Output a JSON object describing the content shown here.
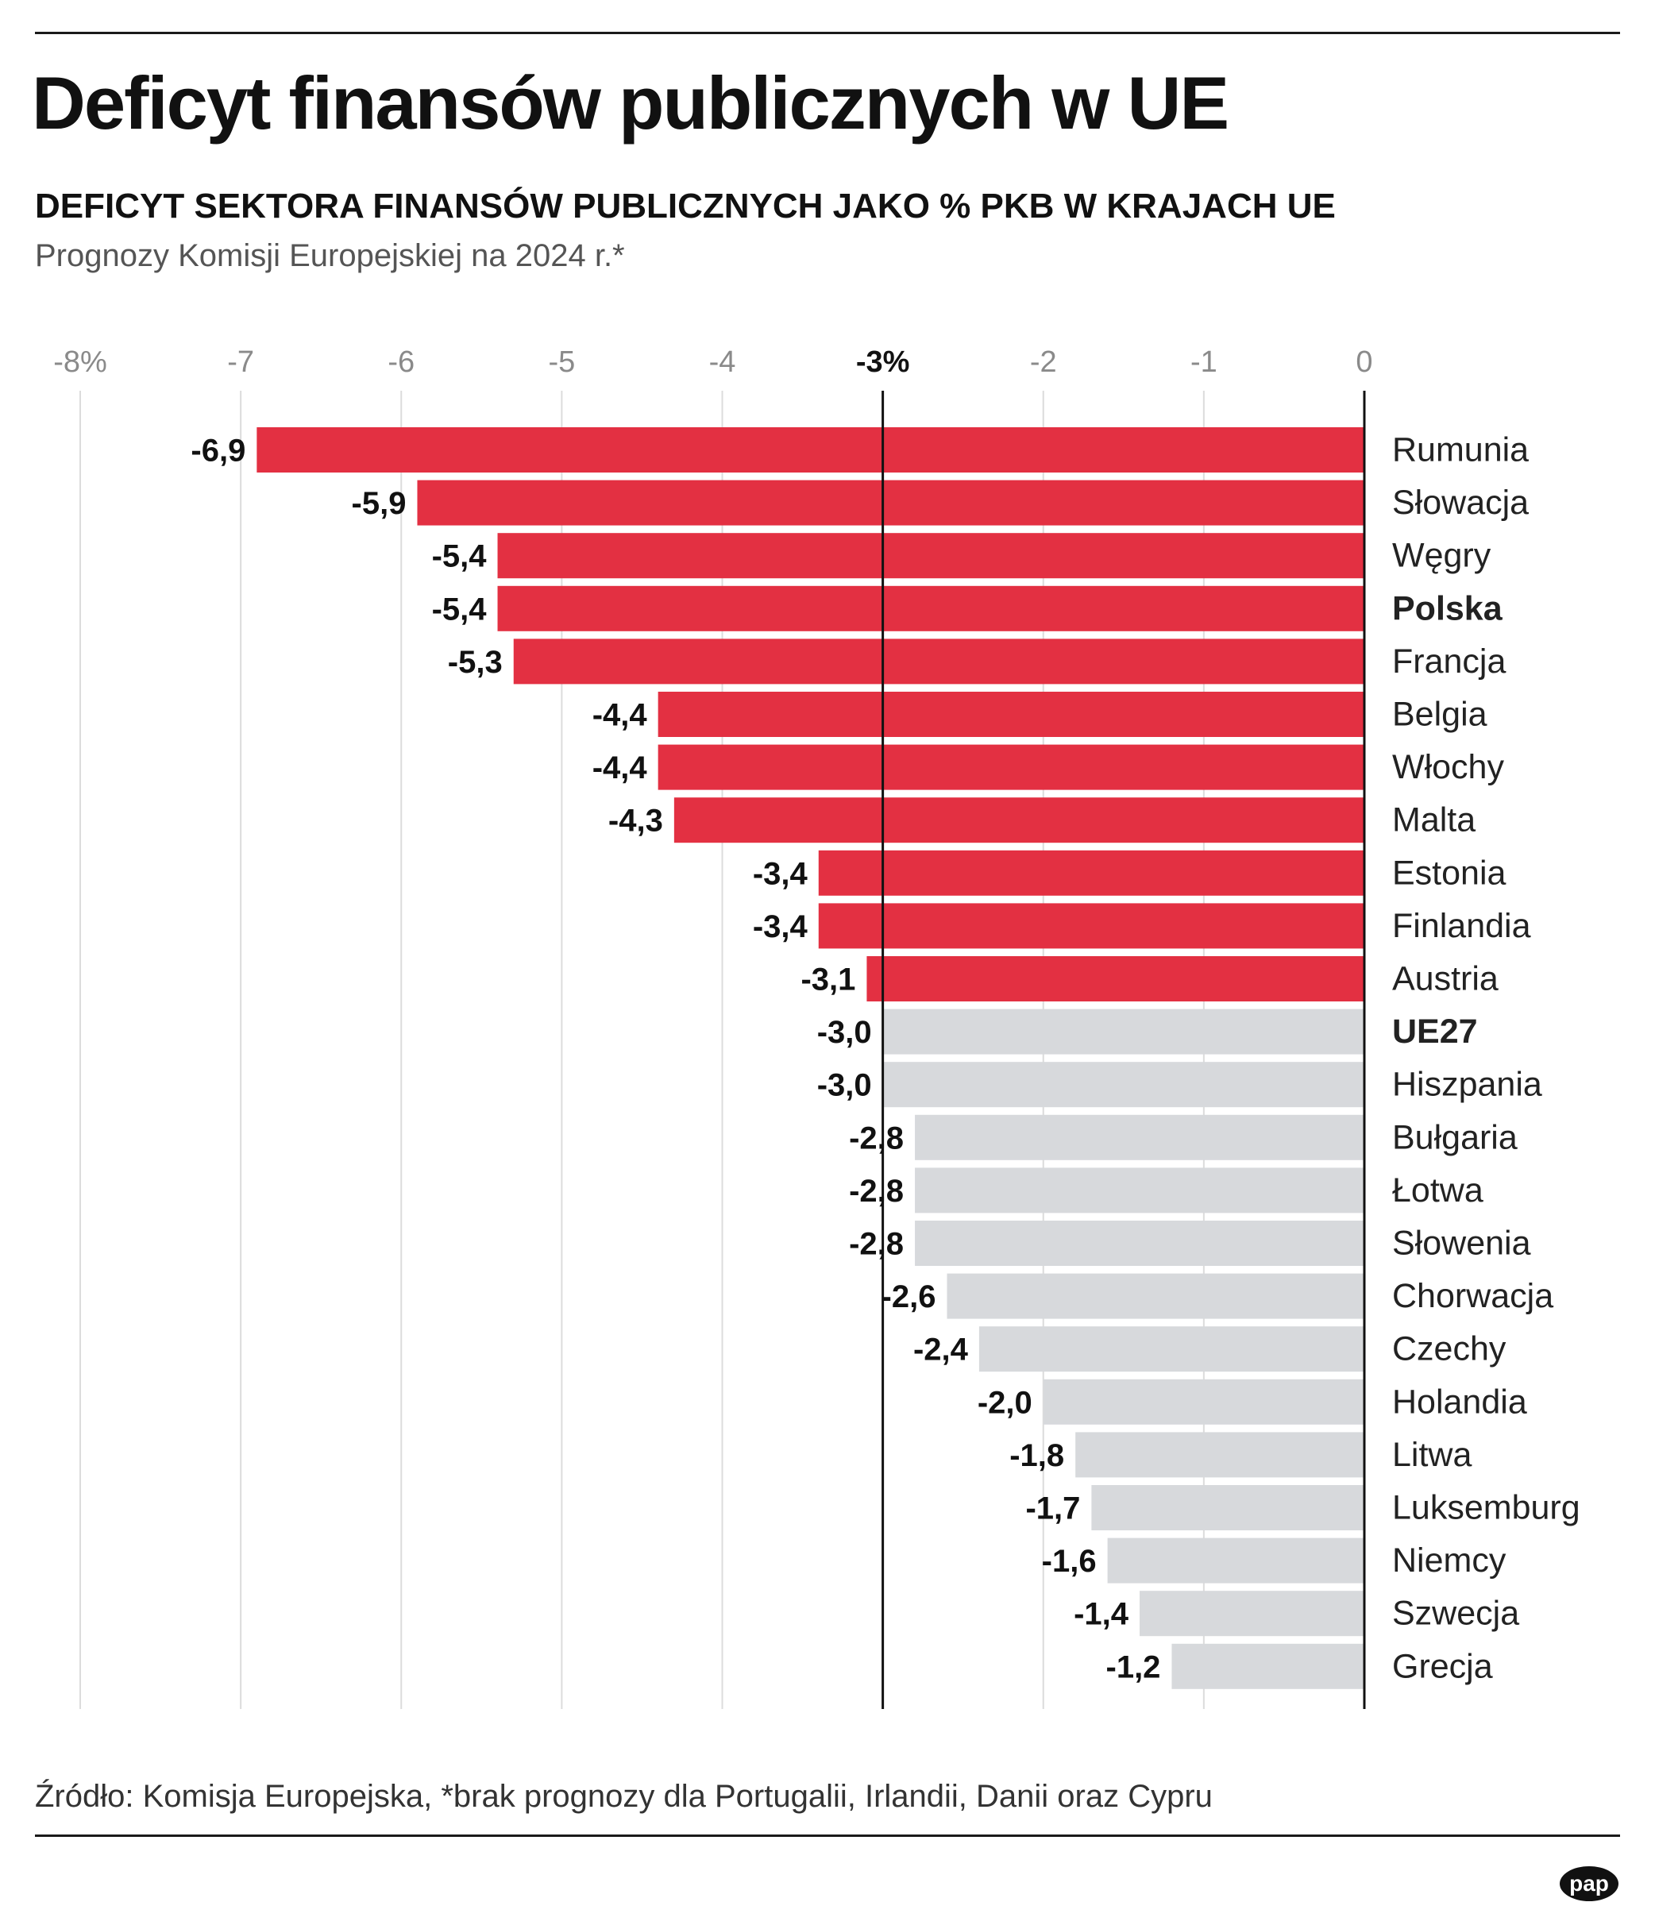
{
  "header": {
    "title": "Deficyt finansów publicznych w UE",
    "subtitle": "DEFICYT SEKTORA FINANSÓW PUBLICZNYCH JAKO % PKB W KRAJACH UE",
    "note": "Prognozy Komisji Europejskiej na 2024 r.*"
  },
  "chart_data": {
    "type": "bar",
    "orientation": "horizontal",
    "xlim": [
      -8,
      0
    ],
    "x_ticks": [
      "-8%",
      "-7",
      "-6",
      "-5",
      "-4",
      "-3%",
      "-2",
      "-1",
      "0"
    ],
    "x_tick_values": [
      -8,
      -7,
      -6,
      -5,
      -4,
      -3,
      -2,
      -1,
      0
    ],
    "reference_line": -3,
    "grid": true,
    "categories": [
      "Rumunia",
      "Słowacja",
      "Węgry",
      "Polska",
      "Francja",
      "Belgia",
      "Włochy",
      "Malta",
      "Estonia",
      "Finlandia",
      "Austria",
      "UE27",
      "Hiszpania",
      "Bułgaria",
      "Łotwa",
      "Słowenia",
      "Chorwacja",
      "Czechy",
      "Holandia",
      "Litwa",
      "Luksemburg",
      "Niemcy",
      "Szwecja",
      "Grecja"
    ],
    "values": [
      -6.9,
      -5.9,
      -5.4,
      -5.4,
      -5.3,
      -4.4,
      -4.4,
      -4.3,
      -3.4,
      -3.4,
      -3.1,
      -3.0,
      -3.0,
      -2.8,
      -2.8,
      -2.8,
      -2.6,
      -2.4,
      -2.0,
      -1.8,
      -1.7,
      -1.6,
      -1.4,
      -1.2
    ],
    "value_labels": [
      "-6,9",
      "-5,9",
      "-5,4",
      "-5,4",
      "-5,3",
      "-4,4",
      "-4,4",
      "-4,3",
      "-3,4",
      "-3,4",
      "-3,1",
      "-3,0",
      "-3,0",
      "-2,8",
      "-2,8",
      "-2,8",
      "-2,6",
      "-2,4",
      "-2,0",
      "-1,8",
      "-1,7",
      "-1,6",
      "-1,4",
      "-1,2"
    ],
    "bold_categories": [
      "Polska",
      "UE27"
    ],
    "colors": {
      "above_limit": "#e33042",
      "within_limit": "#d7d9dc",
      "axis": "#111111",
      "grid": "#dcdcdc",
      "tick": "#8a8a8a"
    }
  },
  "footer": {
    "source": "Źródło: Komisja Europejska, *brak prognozy dla Portugalii, Irlandii, Danii oraz Cypru",
    "logo": "pap"
  }
}
